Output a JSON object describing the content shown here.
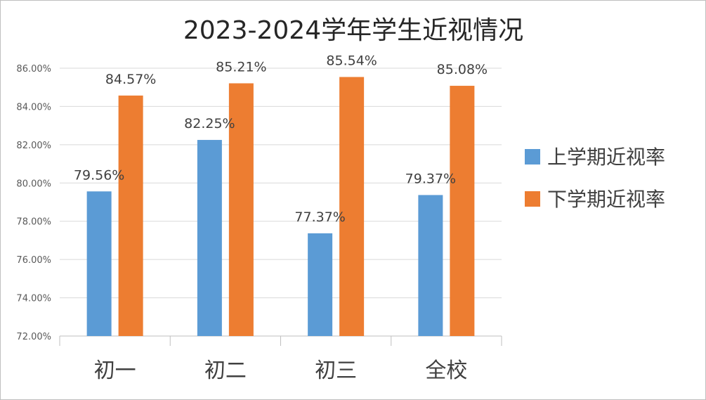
{
  "chart_data": {
    "type": "bar",
    "title": "2023-2024学年学生近视情况",
    "categories": [
      "初一",
      "初二",
      "初三",
      "全校"
    ],
    "series": [
      {
        "name": "上学期近视率",
        "color": "#5b9bd5",
        "values": [
          79.56,
          82.25,
          77.37,
          79.37
        ],
        "labels": [
          "79.56%",
          "82.25%",
          "77.37%",
          "79.37%"
        ]
      },
      {
        "name": "下学期近视率",
        "color": "#ed7d31",
        "values": [
          84.57,
          85.21,
          85.54,
          85.08
        ],
        "labels": [
          "84.57%",
          "85.21%",
          "85.54%",
          "85.08%"
        ]
      }
    ],
    "ylim": [
      72,
      86
    ],
    "yticks": [
      72,
      74,
      76,
      78,
      80,
      82,
      84,
      86
    ],
    "ytick_labels": [
      "72.00%",
      "74.00%",
      "76.00%",
      "78.00%",
      "80.00%",
      "82.00%",
      "84.00%",
      "86.00%"
    ],
    "grid": true,
    "legend_position": "right",
    "xlabel": "",
    "ylabel": ""
  }
}
